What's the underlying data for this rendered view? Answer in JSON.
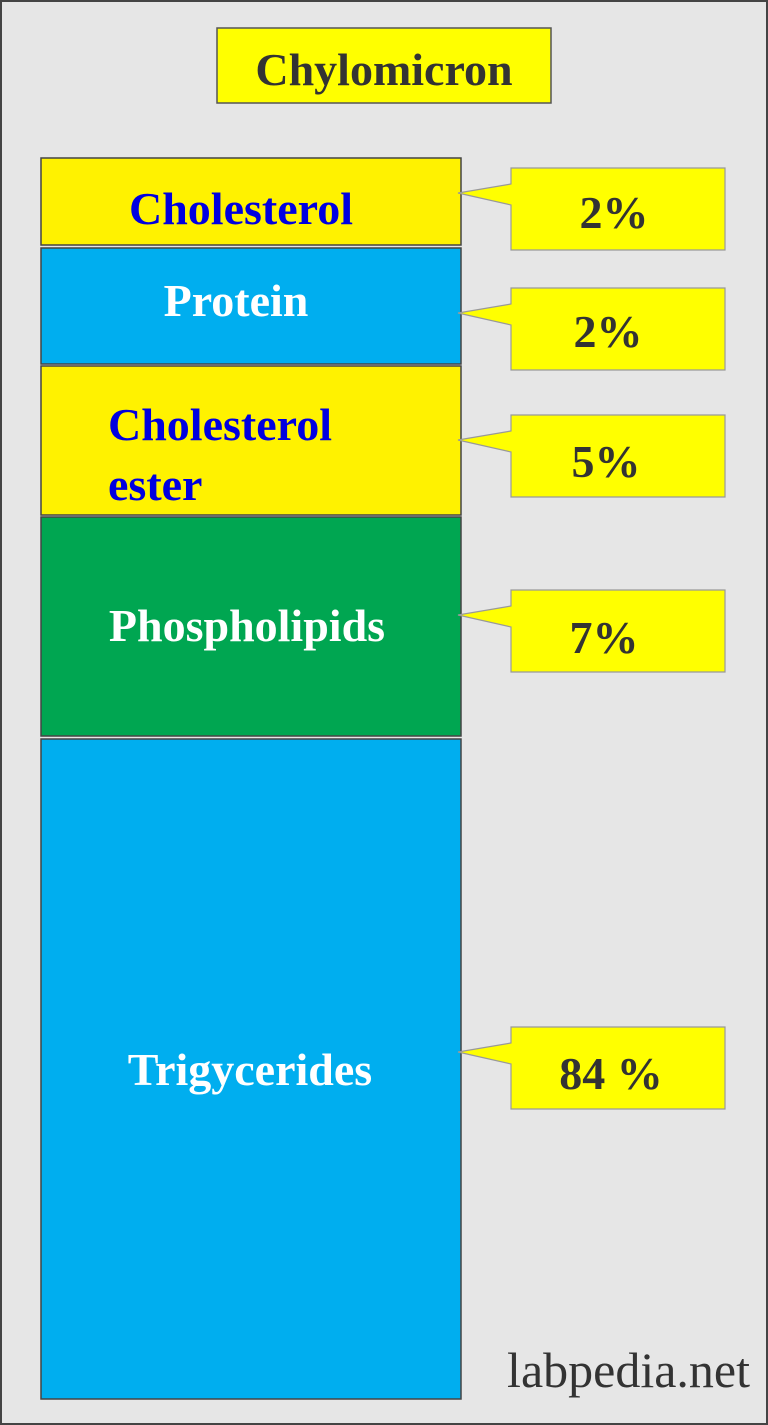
{
  "title": "Chylomicron",
  "colors": {
    "background": "#e6e6e6",
    "yellow": "#fff200",
    "callout_yellow": "#ffff00",
    "blue": "#00aeef",
    "green": "#00a651",
    "label_blue": "#0000e0",
    "label_white": "#ffffff",
    "value_text": "#333333"
  },
  "components": [
    {
      "label": "Cholesterol",
      "value": "2%"
    },
    {
      "label": "Protein",
      "value": "2%"
    },
    {
      "label_line1": "Cholesterol",
      "label_line2": "ester",
      "value": "5%"
    },
    {
      "label": "Phospholipids",
      "value": "7%"
    },
    {
      "label": "Trigycerides",
      "value": "84 %"
    }
  ],
  "watermark": "labpedia.net"
}
